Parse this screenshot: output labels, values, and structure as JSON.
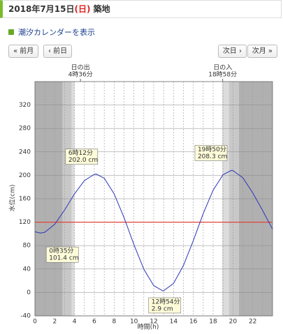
{
  "header": {
    "date": "2018年7月15日",
    "weekday": "(日)",
    "place": "築地"
  },
  "link": "潮汐カレンダーを表示",
  "nav": {
    "prev_month": "« 前月",
    "prev_day": "‹ 前日",
    "next_day": "次日 ›",
    "next_month": "次月 »"
  },
  "chart_data": {
    "type": "line",
    "x_label": "時間(h)",
    "y_label": "水位(cm)",
    "x": [
      0,
      0.583,
      1,
      2,
      3,
      4,
      5,
      6,
      6.2,
      7,
      8,
      9,
      10,
      11,
      12,
      12.9,
      13,
      14,
      15,
      16,
      17,
      18,
      19,
      19.833,
      20,
      21,
      22,
      23,
      24
    ],
    "series": [
      {
        "color": "#2a35b8",
        "values": [
          103.6,
          101.4,
          102.8,
          116.4,
          140.8,
          168.5,
          191.0,
          201.7,
          202.0,
          195.0,
          168.6,
          127.8,
          81.6,
          39.8,
          11.7,
          2.9,
          3.0,
          15.4,
          46.0,
          88.7,
          134.7,
          174.7,
          201.1,
          208.3,
          208.1,
          196,
          170,
          140,
          108
        ]
      }
    ],
    "xlim": [
      0,
      24
    ],
    "ylim": [
      -40,
      360
    ],
    "xticks": [
      0,
      2,
      4,
      6,
      8,
      10,
      12,
      14,
      16,
      18,
      20,
      22
    ],
    "x_minor_grid": [
      1,
      3,
      5,
      7,
      9,
      11,
      13,
      15,
      17,
      19,
      21,
      23
    ],
    "yticks": [
      -40,
      0,
      40,
      80,
      120,
      160,
      200,
      240,
      280,
      320
    ],
    "grid": true,
    "mean_level": 120,
    "mean_color": "#e0443a",
    "shading": [
      {
        "from": 0,
        "to": 2.8,
        "color": "#b0b0b0"
      },
      {
        "from": 2.8,
        "to": 3.7,
        "color": "#c8c8c8"
      },
      {
        "from": 3.7,
        "to": 4.0,
        "color": "#dcdcdc"
      },
      {
        "from": 18.9,
        "to": 19.6,
        "color": "#dcdcdc"
      },
      {
        "from": 19.6,
        "to": 20.6,
        "color": "#c8c8c8"
      },
      {
        "from": 20.6,
        "to": 24,
        "color": "#b0b0b0"
      }
    ],
    "sun": [
      {
        "label": "日の出",
        "time": "4時36分",
        "x": 4.6
      },
      {
        "label": "日の入",
        "time": "18時58分",
        "x": 18.967
      }
    ],
    "annotations": [
      {
        "x": 0.583,
        "y": 101.4,
        "time": "0時35分",
        "level": "101.4 cm"
      },
      {
        "x": 6.2,
        "y": 202.0,
        "time": "6時12分",
        "level": "202.0 cm"
      },
      {
        "x": 12.9,
        "y": 2.9,
        "time": "12時54分",
        "level": "2.9 cm"
      },
      {
        "x": 19.833,
        "y": 208.3,
        "time": "19時50分",
        "level": "208.3 cm"
      }
    ]
  }
}
